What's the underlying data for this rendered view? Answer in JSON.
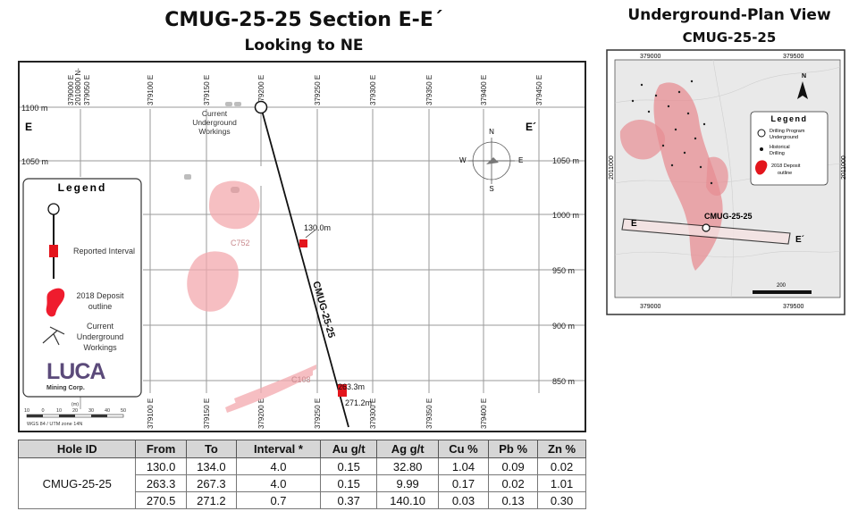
{
  "section": {
    "title": "CMUG-25-25  Section E-E´",
    "subtitle": "Looking to NE",
    "top_ticks": [
      "379000 E",
      "2010800 N-\n379050 E",
      "379100 E",
      "379150 E",
      "379200 E",
      "379250 E",
      "379300 E",
      "379350 E",
      "379400 E",
      "379450 E"
    ],
    "bottom_ticks": [
      "379100 E",
      "379150 E",
      "379200 E",
      "379250 E",
      "379300 E",
      "379350 E",
      "379400 E"
    ],
    "left_elev": [
      "1100 m",
      "1050 m"
    ],
    "right_elev": [
      "1050 m",
      "1000 m",
      "950 m",
      "900 m",
      "850 m"
    ],
    "end_left": "E",
    "end_right": "E´",
    "workings_label": [
      "Current",
      "Underground",
      "Workings"
    ],
    "hole_label": "CMUG-25-25",
    "intercepts": [
      "130.0m",
      "263.3m",
      "271.2m"
    ],
    "deposit_labels": [
      "C752",
      "C108"
    ],
    "compass": {
      "n": "N",
      "s": "S",
      "e": "E",
      "w": "W"
    },
    "scale_ticks": [
      "10",
      "0",
      "10",
      "20",
      "30",
      "40",
      "50"
    ],
    "scale_unit": "(m)",
    "crs": "WGS 84 / UTM zone 14N"
  },
  "legend": {
    "title": "Legend",
    "reported_interval": "Reported Interval",
    "deposit_outline": [
      "2018 Deposit",
      "outline"
    ],
    "workings": [
      "Current",
      "Underground",
      "Workings"
    ],
    "logo_text": "LUCA",
    "logo_sub": "Mining Corp."
  },
  "plan": {
    "title": "Underground-Plan View",
    "subtitle": "CMUG-25-25",
    "top_ticks": [
      "379000",
      "379500"
    ],
    "bottom_ticks": [
      "379000",
      "379500"
    ],
    "left_tick": "2011000",
    "right_tick": "2011000",
    "hole_label": "CMUG-25-25",
    "end_left": "E",
    "end_right": "E´",
    "north": "N",
    "scale_label": "200",
    "legend": {
      "title": "Legend",
      "drilling": [
        "Drilling Program",
        "Underground"
      ],
      "historical": [
        "Historical",
        "Drilling"
      ],
      "deposit": [
        "2018 Deposit",
        "outline"
      ]
    }
  },
  "table": {
    "headers": [
      "Hole ID",
      "From",
      "To",
      "Interval *",
      "Au g/t",
      "Ag g/t",
      "Cu %",
      "Pb %",
      "Zn %"
    ],
    "hole_id": "CMUG-25-25",
    "rows": [
      [
        "130.0",
        "134.0",
        "4.0",
        "0.15",
        "32.80",
        "1.04",
        "0.09",
        "0.02"
      ],
      [
        "263.3",
        "267.3",
        "4.0",
        "0.15",
        "9.99",
        "0.17",
        "0.02",
        "1.01"
      ],
      [
        "270.5",
        "271.2",
        "0.7",
        "0.37",
        "140.10",
        "0.03",
        "0.13",
        "0.30"
      ]
    ]
  },
  "colors": {
    "deposit": "#f2a0a6",
    "interval": "#e3151c",
    "plan_deposit": "#e78d93"
  }
}
